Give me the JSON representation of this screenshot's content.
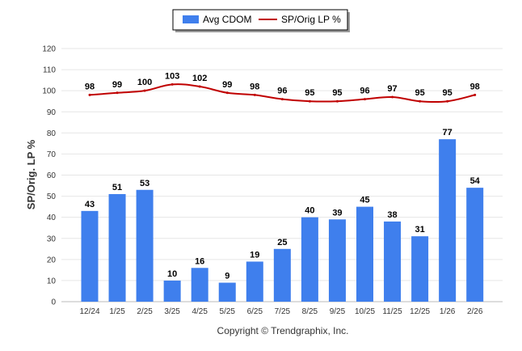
{
  "chart_data": {
    "type": "bar",
    "categories": [
      "12/24",
      "1/25",
      "2/25",
      "3/25",
      "4/25",
      "5/25",
      "6/25",
      "7/25",
      "8/25",
      "9/25",
      "10/25",
      "11/25",
      "12/25",
      "1/26",
      "2/26"
    ],
    "series": [
      {
        "name": "Avg CDOM",
        "type": "bar",
        "color": "#3f7fed",
        "values": [
          43,
          51,
          53,
          10,
          16,
          9,
          19,
          25,
          40,
          39,
          45,
          38,
          31,
          77,
          54
        ]
      },
      {
        "name": "SP/Orig LP %",
        "type": "line",
        "color": "#c00000",
        "values": [
          98,
          99,
          100,
          103,
          102,
          99,
          98,
          96,
          95,
          95,
          96,
          97,
          95,
          95,
          98
        ]
      }
    ],
    "ylabel": "SP/Orig. LP %",
    "ylim": [
      0,
      120
    ],
    "yticks": [
      0,
      10,
      20,
      30,
      40,
      50,
      60,
      70,
      80,
      90,
      100,
      110,
      120
    ],
    "grid": true,
    "legend": "top-center"
  },
  "footer": {
    "copyright": "Copyright © Trendgraphix, Inc."
  }
}
